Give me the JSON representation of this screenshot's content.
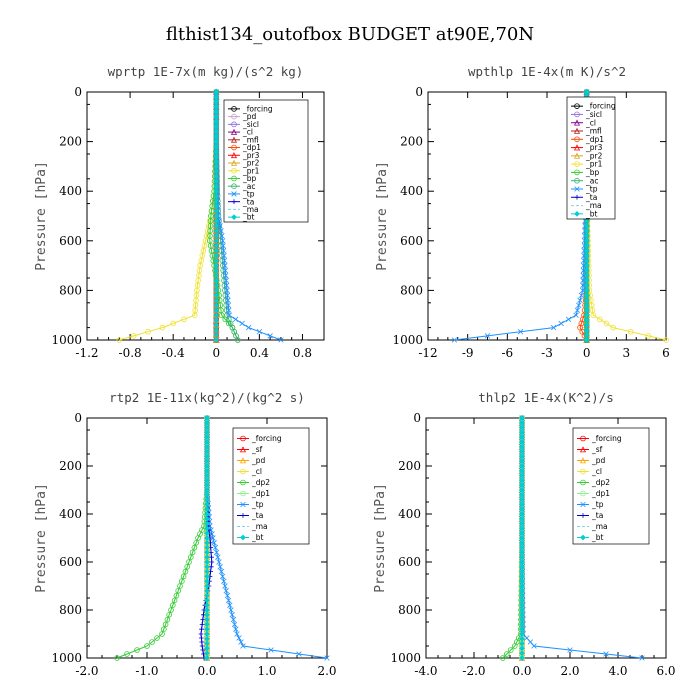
{
  "title": "flthist134_outofbox  BUDGET at90E,70N",
  "chart_data": [
    {
      "type": "line",
      "title": "wprtp  1E-7x(m kg)/(s^2 kg)",
      "ylabel": "Pressure [hPa]",
      "xlim": [
        -1.2,
        1.0
      ],
      "ylim": [
        1000,
        0
      ],
      "xticks": [
        "-1.2",
        "-0.8",
        "-0.4",
        "0",
        "0.4",
        "0.8"
      ],
      "xtick_values": [
        -1.2,
        -0.8,
        -0.4,
        0,
        0.4,
        0.8
      ],
      "yticks": [
        "0",
        "200",
        "400",
        "600",
        "800",
        "1000"
      ],
      "ytick_values": [
        0,
        200,
        400,
        600,
        800,
        1000
      ],
      "legend_position": "top-right",
      "series": [
        {
          "name": "_forcing",
          "color": "#000000",
          "marker": "circle",
          "pressure": [
            0,
            100,
            200,
            300,
            400,
            500,
            600,
            700,
            800,
            900,
            950,
            1000
          ],
          "values": [
            0,
            0,
            0,
            0,
            0,
            0,
            0,
            0,
            0,
            0,
            0,
            0
          ]
        },
        {
          "name": "_pd",
          "color": "#c8a2c8",
          "marker": "circle",
          "pressure": [
            0,
            500,
            900,
            1000
          ],
          "values": [
            0,
            0,
            0,
            0
          ]
        },
        {
          "name": "_sicl",
          "color": "#9370db",
          "marker": "circle",
          "pressure": [
            0,
            500,
            900,
            1000
          ],
          "values": [
            0,
            0,
            0,
            0
          ]
        },
        {
          "name": "_cl",
          "color": "#8b008b",
          "marker": "triangle",
          "pressure": [
            0,
            500,
            900,
            1000
          ],
          "values": [
            0,
            0,
            0,
            0
          ]
        },
        {
          "name": "_mfl",
          "color": "#b22222",
          "marker": "triangle",
          "pressure": [
            0,
            500,
            900,
            1000
          ],
          "values": [
            0,
            0,
            0,
            0
          ]
        },
        {
          "name": "_dp1",
          "color": "#ff4500",
          "marker": "circle",
          "pressure": [
            0,
            500,
            900,
            1000
          ],
          "values": [
            0,
            0,
            0,
            0
          ]
        },
        {
          "name": "_pr3",
          "color": "#ff0000",
          "marker": "triangle",
          "pressure": [
            0,
            500,
            900,
            1000
          ],
          "values": [
            0,
            0,
            0,
            0
          ]
        },
        {
          "name": "_pr2",
          "color": "#daa520",
          "marker": "triangle",
          "pressure": [
            0,
            500,
            900,
            1000
          ],
          "values": [
            0,
            0,
            0,
            0
          ]
        },
        {
          "name": "_pr1",
          "color": "#f0e130",
          "marker": "circle",
          "pressure": [
            0,
            200,
            400,
            500,
            600,
            700,
            800,
            900,
            950,
            1000
          ],
          "values": [
            0,
            0,
            -0.02,
            -0.05,
            -0.1,
            -0.15,
            -0.18,
            -0.2,
            -0.5,
            -0.9
          ]
        },
        {
          "name": "_bp",
          "color": "#32cd32",
          "marker": "circle",
          "pressure": [
            0,
            200,
            400,
            500,
            600,
            700,
            800,
            900,
            950,
            1000
          ],
          "values": [
            0,
            0,
            -0.02,
            -0.05,
            -0.06,
            -0.02,
            0.02,
            0.05,
            0.15,
            0.2
          ]
        },
        {
          "name": "_ac",
          "color": "#3cb371",
          "marker": "circle",
          "pressure": [
            0,
            200,
            400,
            500,
            600,
            700,
            800,
            900,
            950,
            1000
          ],
          "values": [
            0,
            0,
            0.01,
            0.02,
            0.04,
            0.06,
            0.08,
            0.1,
            0.15,
            0.2
          ]
        },
        {
          "name": "_tp",
          "color": "#1e90ff",
          "marker": "cross",
          "pressure": [
            0,
            200,
            400,
            500,
            600,
            700,
            800,
            900,
            950,
            1000
          ],
          "values": [
            0,
            0,
            0.01,
            0.02,
            0.06,
            0.08,
            0.1,
            0.12,
            0.3,
            0.6
          ]
        },
        {
          "name": "_ta",
          "color": "#0000cd",
          "marker": "plus",
          "pressure": [
            0,
            500,
            900,
            1000
          ],
          "values": [
            0,
            0,
            0,
            0
          ]
        },
        {
          "name": "_ma",
          "color": "#87ceeb",
          "marker": "none",
          "pressure": [
            0,
            500,
            900,
            1000
          ],
          "values": [
            0,
            0,
            0,
            0
          ]
        },
        {
          "name": "_bt",
          "color": "#00ced1",
          "marker": "diamond",
          "pressure": [
            0,
            500,
            900,
            1000
          ],
          "values": [
            0,
            0,
            0,
            0
          ]
        }
      ]
    },
    {
      "type": "line",
      "title": "wpthlp  1E-4x(m K)/s^2",
      "ylabel": "Pressure [hPa]",
      "xlim": [
        -12,
        6
      ],
      "ylim": [
        1000,
        0
      ],
      "xticks": [
        "-12",
        "-9",
        "-6",
        "-3",
        "0",
        "3",
        "6"
      ],
      "xtick_values": [
        -12,
        -9,
        -6,
        -3,
        0,
        3,
        6
      ],
      "yticks": [
        "0",
        "200",
        "400",
        "600",
        "800",
        "1000"
      ],
      "ytick_values": [
        0,
        200,
        400,
        600,
        800,
        1000
      ],
      "legend_position": "top-right",
      "series": [
        {
          "name": "_forcing",
          "color": "#000000",
          "marker": "circle",
          "pressure": [
            0,
            500,
            900,
            1000
          ],
          "values": [
            0,
            0,
            0,
            0
          ]
        },
        {
          "name": "_sicl",
          "color": "#9370db",
          "marker": "circle",
          "pressure": [
            0,
            500,
            900,
            1000
          ],
          "values": [
            0,
            0,
            0,
            0
          ]
        },
        {
          "name": "_cl",
          "color": "#8b008b",
          "marker": "triangle",
          "pressure": [
            0,
            500,
            900,
            1000
          ],
          "values": [
            0,
            0,
            0,
            0
          ]
        },
        {
          "name": "_mfl",
          "color": "#b22222",
          "marker": "triangle",
          "pressure": [
            0,
            500,
            900,
            1000
          ],
          "values": [
            0,
            0,
            0,
            0
          ]
        },
        {
          "name": "_dp1",
          "color": "#ff4500",
          "marker": "circle",
          "pressure": [
            0,
            200,
            500,
            800,
            900,
            950,
            1000
          ],
          "values": [
            0,
            0,
            0,
            0,
            -0.2,
            -0.5,
            0
          ]
        },
        {
          "name": "_pr3",
          "color": "#ff0000",
          "marker": "triangle",
          "pressure": [
            0,
            500,
            900,
            1000
          ],
          "values": [
            0,
            0,
            0,
            0
          ]
        },
        {
          "name": "_pr2",
          "color": "#daa520",
          "marker": "triangle",
          "pressure": [
            0,
            500,
            900,
            1000
          ],
          "values": [
            0,
            0,
            0,
            0
          ]
        },
        {
          "name": "_pr1",
          "color": "#f0e130",
          "marker": "circle",
          "pressure": [
            0,
            200,
            500,
            800,
            900,
            950,
            1000
          ],
          "values": [
            0,
            0,
            0.05,
            0.2,
            0.5,
            2,
            6
          ]
        },
        {
          "name": "_bp",
          "color": "#32cd32",
          "marker": "circle",
          "pressure": [
            0,
            500,
            900,
            1000
          ],
          "values": [
            0,
            0,
            0,
            0
          ]
        },
        {
          "name": "_ac",
          "color": "#3cb371",
          "marker": "circle",
          "pressure": [
            0,
            500,
            900,
            1000
          ],
          "values": [
            0,
            0,
            0,
            0
          ]
        },
        {
          "name": "_tp",
          "color": "#1e90ff",
          "marker": "cross",
          "pressure": [
            0,
            200,
            500,
            800,
            900,
            950,
            1000
          ],
          "values": [
            0,
            0,
            -0.1,
            -0.3,
            -0.8,
            -2.5,
            -10
          ]
        },
        {
          "name": "_ta",
          "color": "#0000cd",
          "marker": "plus",
          "pressure": [
            0,
            500,
            900,
            1000
          ],
          "values": [
            0,
            0,
            0,
            0
          ]
        },
        {
          "name": "_ma",
          "color": "#87ceeb",
          "marker": "none",
          "pressure": [
            0,
            500,
            900,
            1000
          ],
          "values": [
            0,
            0,
            0,
            0
          ]
        },
        {
          "name": "_bt",
          "color": "#00ced1",
          "marker": "diamond",
          "pressure": [
            0,
            500,
            900,
            1000
          ],
          "values": [
            0,
            0,
            0,
            0
          ]
        }
      ]
    },
    {
      "type": "line",
      "title": "rtp2  1E-11x(kg^2)/(kg^2 s)",
      "ylabel": "Pressure [hPa]",
      "xlim": [
        -2.0,
        2.0
      ],
      "ylim": [
        1000,
        0
      ],
      "xticks": [
        "-2.0",
        "-1.0",
        "0.0",
        "1.0",
        "2.0"
      ],
      "xtick_values": [
        -2,
        -1,
        0,
        1,
        2
      ],
      "yticks": [
        "0",
        "200",
        "400",
        "600",
        "800",
        "1000"
      ],
      "ytick_values": [
        0,
        200,
        400,
        600,
        800,
        1000
      ],
      "legend_position": "top-right",
      "series": [
        {
          "name": "_forcing",
          "color": "#ff0000",
          "marker": "circle",
          "pressure": [
            0,
            100,
            200,
            300,
            400,
            500,
            600,
            700,
            800,
            900,
            1000
          ],
          "values": [
            0,
            0,
            0,
            0,
            0,
            0,
            0,
            0,
            0,
            0,
            0
          ]
        },
        {
          "name": "_sf",
          "color": "#ff0000",
          "marker": "triangle",
          "pressure": [
            0,
            500,
            1000
          ],
          "values": [
            0,
            0,
            0
          ]
        },
        {
          "name": "_pd",
          "color": "#ffa500",
          "marker": "triangle",
          "pressure": [
            0,
            500,
            1000
          ],
          "values": [
            0,
            0,
            0
          ]
        },
        {
          "name": "_cl",
          "color": "#f0e130",
          "marker": "circle",
          "pressure": [
            0,
            500,
            1000
          ],
          "values": [
            0,
            0,
            0
          ]
        },
        {
          "name": "_dp2",
          "color": "#32cd32",
          "marker": "circle",
          "pressure": [
            0,
            300,
            450,
            500,
            600,
            700,
            800,
            900,
            950,
            1000
          ],
          "values": [
            0,
            0,
            -0.05,
            -0.15,
            -0.3,
            -0.45,
            -0.6,
            -0.75,
            -1.0,
            -1.5
          ]
        },
        {
          "name": "_dp1",
          "color": "#90ee90",
          "marker": "circle",
          "pressure": [
            0,
            500,
            1000
          ],
          "values": [
            0,
            0,
            0
          ]
        },
        {
          "name": "_tp",
          "color": "#1e90ff",
          "marker": "cross",
          "pressure": [
            0,
            300,
            450,
            500,
            600,
            700,
            800,
            900,
            950,
            1000
          ],
          "values": [
            0,
            0,
            0.05,
            0.1,
            0.2,
            0.3,
            0.4,
            0.5,
            0.6,
            2.0
          ]
        },
        {
          "name": "_ta",
          "color": "#0000cd",
          "marker": "plus",
          "pressure": [
            0,
            300,
            450,
            500,
            600,
            700,
            800,
            900,
            950,
            1000
          ],
          "values": [
            0,
            0,
            0.02,
            0.05,
            0.08,
            0.03,
            -0.05,
            -0.1,
            -0.08,
            -0.05
          ]
        },
        {
          "name": "_ma",
          "color": "#87ceeb",
          "marker": "none",
          "pressure": [
            0,
            500,
            1000
          ],
          "values": [
            0,
            0,
            0
          ]
        },
        {
          "name": "_bt",
          "color": "#00ced1",
          "marker": "diamond",
          "pressure": [
            0,
            500,
            1000
          ],
          "values": [
            0,
            0,
            0
          ]
        }
      ]
    },
    {
      "type": "line",
      "title": "thlp2  1E-4x(K^2)/s",
      "ylabel": "Pressure [hPa]",
      "xlim": [
        -4.0,
        6.0
      ],
      "ylim": [
        1000,
        0
      ],
      "xticks": [
        "-4.0",
        "-2.0",
        "0.0",
        "2.0",
        "4.0",
        "6.0"
      ],
      "xtick_values": [
        -4,
        -2,
        0,
        2,
        4,
        6
      ],
      "yticks": [
        "0",
        "200",
        "400",
        "600",
        "800",
        "1000"
      ],
      "ytick_values": [
        0,
        200,
        400,
        600,
        800,
        1000
      ],
      "legend_position": "top-right",
      "series": [
        {
          "name": "_forcing",
          "color": "#ff0000",
          "marker": "circle",
          "pressure": [
            0,
            100,
            200,
            300,
            400,
            500,
            600,
            700,
            800,
            900,
            1000
          ],
          "values": [
            0,
            0,
            0,
            0,
            0,
            0,
            0,
            0,
            0,
            0,
            0
          ]
        },
        {
          "name": "_sf",
          "color": "#ff0000",
          "marker": "triangle",
          "pressure": [
            0,
            500,
            1000
          ],
          "values": [
            0,
            0,
            0
          ]
        },
        {
          "name": "_pd",
          "color": "#ffa500",
          "marker": "triangle",
          "pressure": [
            0,
            500,
            1000
          ],
          "values": [
            0,
            0,
            0
          ]
        },
        {
          "name": "_cl",
          "color": "#f0e130",
          "marker": "circle",
          "pressure": [
            0,
            500,
            1000
          ],
          "values": [
            0,
            0,
            0
          ]
        },
        {
          "name": "_dp2",
          "color": "#32cd32",
          "marker": "circle",
          "pressure": [
            0,
            500,
            900,
            950,
            1000
          ],
          "values": [
            0,
            0,
            -0.05,
            -0.3,
            -0.8
          ]
        },
        {
          "name": "_dp1",
          "color": "#90ee90",
          "marker": "circle",
          "pressure": [
            0,
            500,
            1000
          ],
          "values": [
            0,
            0,
            0
          ]
        },
        {
          "name": "_tp",
          "color": "#1e90ff",
          "marker": "cross",
          "pressure": [
            0,
            500,
            900,
            950,
            1000
          ],
          "values": [
            0,
            0,
            0.05,
            0.5,
            5.0
          ]
        },
        {
          "name": "_ta",
          "color": "#0000cd",
          "marker": "plus",
          "pressure": [
            0,
            500,
            1000
          ],
          "values": [
            0,
            0,
            0
          ]
        },
        {
          "name": "_ma",
          "color": "#87ceeb",
          "marker": "none",
          "pressure": [
            0,
            500,
            1000
          ],
          "values": [
            0,
            0,
            0
          ]
        },
        {
          "name": "_bt",
          "color": "#00ced1",
          "marker": "diamond",
          "pressure": [
            0,
            500,
            1000
          ],
          "values": [
            0,
            0,
            0
          ]
        }
      ]
    }
  ]
}
